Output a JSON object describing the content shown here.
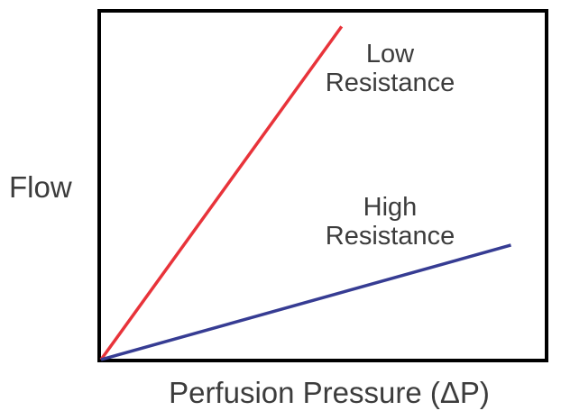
{
  "chart_data": {
    "type": "line",
    "title": "",
    "xlabel": "Perfusion Pressure (ΔP)",
    "ylabel": "Flow",
    "xlim": [
      0,
      1
    ],
    "ylim": [
      0,
      1
    ],
    "grid": false,
    "ticks": false,
    "series": [
      {
        "name": "Low Resistance",
        "label_lines": [
          "Low",
          "Resistance"
        ],
        "color": "#e8333a",
        "x": [
          0,
          0.54
        ],
        "y": [
          0,
          0.96
        ]
      },
      {
        "name": "High Resistance",
        "label_lines": [
          "High",
          "Resistance"
        ],
        "color": "#363c93",
        "x": [
          0,
          0.92
        ],
        "y": [
          0,
          0.33
        ]
      }
    ]
  },
  "colors": {
    "frame": "#000000",
    "low_resistance": "#e8333a",
    "high_resistance": "#363c93",
    "text": "#3c3c3c"
  }
}
